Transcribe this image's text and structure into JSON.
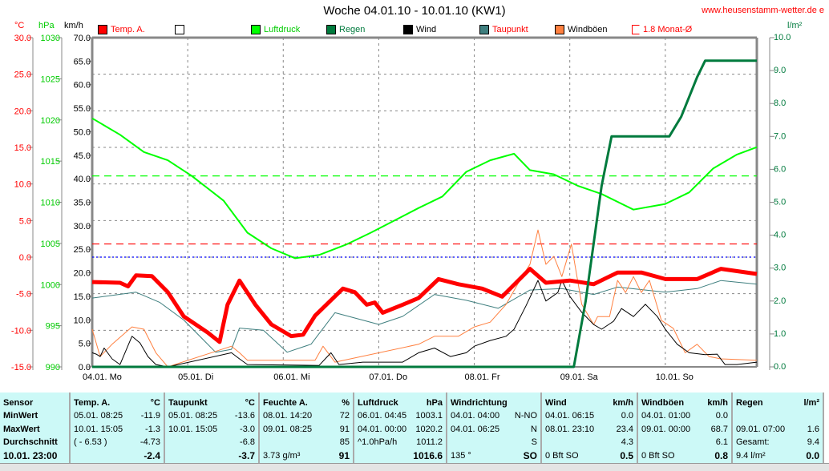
{
  "header": {
    "title": "Woche 04.01.10 - 10.01.10 (KW1)",
    "site": "www.heusenstamm-wetter.de e"
  },
  "axes_units": {
    "temp": "°C",
    "pressure": "hPa",
    "wind": "km/h",
    "rain": "l/m²"
  },
  "legend": [
    {
      "label": "Temp. A.",
      "color": "#ff0000",
      "text_color": "#ff0000"
    },
    {
      "label": "",
      "color": "#ffffff",
      "text_color": "#000000"
    },
    {
      "label": "Luftdruck",
      "color": "#00ff00",
      "text_color": "#00cc00"
    },
    {
      "label": "Regen",
      "color": "#007a3d",
      "text_color": "#007a3d"
    },
    {
      "label": "Wind",
      "color": "#000000",
      "text_color": "#000000"
    },
    {
      "label": "Taupunkt",
      "color": "#3f7f7f",
      "text_color": "#ff0000"
    },
    {
      "label": "Windböen",
      "color": "#ff8040",
      "text_color": "#000000"
    },
    {
      "label": "1.8 Monat-Ø",
      "color": "#ff0000",
      "text_color": "#ff0000"
    }
  ],
  "chart_data": {
    "type": "line",
    "title": "Woche 04.01.10 - 10.01.10 (KW1)",
    "x_unit": "hours since 04.01. 00:00",
    "xlim": [
      0,
      167
    ],
    "x_ticks": [
      "04.01. Mo",
      "05.01. Di",
      "06.01. Mi",
      "07.01. Do",
      "08.01. Fr",
      "09.01. Sa",
      "10.01. So"
    ],
    "axes": {
      "temp": {
        "range": [
          -15,
          30
        ],
        "ticks": [
          "30.0",
          "25.0",
          "20.0",
          "15.0",
          "10.0",
          "5.0",
          "0.0",
          "-5.0",
          "-10.0",
          "-15.0"
        ]
      },
      "pressure": {
        "range": [
          990,
          1030
        ],
        "ticks": [
          "1030",
          "1025",
          "1020",
          "1015",
          "1010",
          "1005",
          "1000",
          "995",
          "990"
        ]
      },
      "wind": {
        "range": [
          0,
          70
        ],
        "ticks": [
          "70.0",
          "65.0",
          "60.0",
          "55.0",
          "50.0",
          "45.0",
          "40.0",
          "35.0",
          "30.0",
          "25.0",
          "20.0",
          "15.0",
          "10.0",
          "5.0",
          "0.0"
        ]
      },
      "rain": {
        "range": [
          0,
          10
        ],
        "ticks": [
          "10.0",
          "9.0",
          "8.0",
          "7.0",
          "6.0",
          "5.0",
          "4.0",
          "3.0",
          "2.0",
          "1.0",
          "0.0"
        ]
      }
    },
    "grid": true,
    "reference_lines": [
      {
        "axis": "temp",
        "value": 1.8,
        "color": "#ff0000",
        "style": "dashed"
      },
      {
        "axis": "temp",
        "value": 0,
        "color": "#0000ff",
        "style": "dotted"
      },
      {
        "axis": "pressure",
        "value": 1013.2,
        "color": "#00ff00",
        "style": "dashed"
      }
    ],
    "series": [
      {
        "name": "Luftdruck",
        "axis": "pressure",
        "color": "#00ff00",
        "width": 2,
        "points": [
          [
            0,
            1020.2
          ],
          [
            7,
            1018.2
          ],
          [
            13,
            1016.1
          ],
          [
            19,
            1015.1
          ],
          [
            25,
            1013.2
          ],
          [
            33,
            1010.2
          ],
          [
            39,
            1006.3
          ],
          [
            45,
            1004.4
          ],
          [
            51,
            1003.2
          ],
          [
            57,
            1003.6
          ],
          [
            64,
            1004.9
          ],
          [
            70,
            1006.3
          ],
          [
            76,
            1007.8
          ],
          [
            82,
            1009.3
          ],
          [
            88,
            1010.7
          ],
          [
            94,
            1013.7
          ],
          [
            100,
            1015.1
          ],
          [
            106,
            1015.9
          ],
          [
            110,
            1013.9
          ],
          [
            116,
            1013.4
          ],
          [
            122,
            1012
          ],
          [
            128,
            1011
          ],
          [
            136,
            1009.1
          ],
          [
            144,
            1009.8
          ],
          [
            150,
            1011.2
          ],
          [
            156,
            1014.1
          ],
          [
            162,
            1015.8
          ],
          [
            167,
            1016.7
          ]
        ]
      },
      {
        "name": "Taupunkt",
        "axis": "temp",
        "color": "#3f7f7f",
        "width": 1,
        "points": [
          [
            0,
            -5.6
          ],
          [
            11,
            -4.8
          ],
          [
            17,
            -6.2
          ],
          [
            23,
            -8.6
          ],
          [
            31,
            -13
          ],
          [
            35,
            -12.6
          ],
          [
            37,
            -9.7
          ],
          [
            43,
            -10
          ],
          [
            49,
            -13
          ],
          [
            55,
            -11.9
          ],
          [
            61,
            -7.6
          ],
          [
            72,
            -9.2
          ],
          [
            78,
            -8.1
          ],
          [
            86,
            -5.1
          ],
          [
            94,
            -5.9
          ],
          [
            102,
            -7
          ],
          [
            110,
            -4.5
          ],
          [
            118,
            -4.3
          ],
          [
            126,
            -5.1
          ],
          [
            132,
            -4.1
          ],
          [
            144,
            -4.8
          ],
          [
            152,
            -4.3
          ],
          [
            158,
            -3.2
          ],
          [
            167,
            -3.7
          ]
        ]
      },
      {
        "name": "Windböen",
        "axis": "wind",
        "color": "#ff8040",
        "width": 1,
        "points": [
          [
            0,
            8
          ],
          [
            2,
            2.2
          ],
          [
            5,
            4.8
          ],
          [
            10,
            8.5
          ],
          [
            13,
            8
          ],
          [
            16,
            3
          ],
          [
            19,
            0
          ],
          [
            35,
            4.4
          ],
          [
            37,
            3
          ],
          [
            39,
            1.4
          ],
          [
            56,
            1.4
          ],
          [
            58,
            4.4
          ],
          [
            61,
            1
          ],
          [
            82,
            4.8
          ],
          [
            86,
            6.5
          ],
          [
            92,
            6.5
          ],
          [
            96,
            8.5
          ],
          [
            100,
            9.5
          ],
          [
            104,
            13.3
          ],
          [
            108,
            19.2
          ],
          [
            110,
            21.8
          ],
          [
            112,
            29.1
          ],
          [
            114,
            21.8
          ],
          [
            116,
            23.5
          ],
          [
            118,
            19.2
          ],
          [
            120.4,
            26.1
          ],
          [
            123,
            13.3
          ],
          [
            126,
            9
          ],
          [
            127,
            10.7
          ],
          [
            130,
            10.7
          ],
          [
            132,
            18.4
          ],
          [
            134,
            15.8
          ],
          [
            136,
            19.2
          ],
          [
            138,
            15.8
          ],
          [
            140,
            18.4
          ],
          [
            143,
            9.9
          ],
          [
            146,
            8.2
          ],
          [
            149,
            3
          ],
          [
            152,
            4.8
          ],
          [
            155,
            2.2
          ],
          [
            158,
            1.7
          ],
          [
            167,
            1.4
          ]
        ]
      },
      {
        "name": "Wind",
        "axis": "wind",
        "color": "#000000",
        "width": 1,
        "points": [
          [
            0,
            3
          ],
          [
            1,
            2.7
          ],
          [
            2,
            2.2
          ],
          [
            3,
            4
          ],
          [
            5,
            1.7
          ],
          [
            7,
            0.5
          ],
          [
            10,
            6.5
          ],
          [
            12,
            5.1
          ],
          [
            14,
            2.2
          ],
          [
            16,
            0.5
          ],
          [
            19,
            0
          ],
          [
            35,
            3
          ],
          [
            37,
            1.7
          ],
          [
            39,
            0.5
          ],
          [
            57,
            0.3
          ],
          [
            60,
            3
          ],
          [
            62,
            0.5
          ],
          [
            68,
            1
          ],
          [
            78,
            1
          ],
          [
            82,
            3
          ],
          [
            86,
            4
          ],
          [
            90,
            2.2
          ],
          [
            94,
            3
          ],
          [
            96,
            4.4
          ],
          [
            100,
            5.6
          ],
          [
            104,
            6.5
          ],
          [
            106,
            8
          ],
          [
            109,
            13
          ],
          [
            112,
            18.4
          ],
          [
            114,
            14
          ],
          [
            117,
            15.8
          ],
          [
            118,
            18.4
          ],
          [
            120,
            15
          ],
          [
            123,
            11.6
          ],
          [
            126,
            9
          ],
          [
            128,
            8
          ],
          [
            131,
            9.7
          ],
          [
            133,
            12.4
          ],
          [
            136,
            10.7
          ],
          [
            139,
            13.3
          ],
          [
            142,
            10.7
          ],
          [
            144,
            8
          ],
          [
            147,
            4.8
          ],
          [
            150,
            3
          ],
          [
            154,
            2.6
          ],
          [
            157,
            2.7
          ],
          [
            159,
            0.5
          ],
          [
            162,
            0.5
          ],
          [
            167,
            1
          ]
        ]
      },
      {
        "name": "Temp. A.",
        "axis": "temp",
        "color": "#ff0000",
        "width": 5,
        "points": [
          [
            0,
            -3.4
          ],
          [
            7,
            -3.5
          ],
          [
            9,
            -4.0
          ],
          [
            11,
            -2.5
          ],
          [
            15,
            -2.6
          ],
          [
            19,
            -4.8
          ],
          [
            23,
            -8.1
          ],
          [
            29,
            -10.3
          ],
          [
            32,
            -11.6
          ],
          [
            34,
            -6.5
          ],
          [
            37,
            -3.2
          ],
          [
            41,
            -6.5
          ],
          [
            45,
            -9.2
          ],
          [
            50,
            -10.8
          ],
          [
            53,
            -10.6
          ],
          [
            56,
            -8
          ],
          [
            63,
            -4.3
          ],
          [
            66,
            -4.8
          ],
          [
            69,
            -6.5
          ],
          [
            71,
            -6.2
          ],
          [
            73,
            -7.6
          ],
          [
            78,
            -6.5
          ],
          [
            82,
            -5.6
          ],
          [
            87,
            -3.0
          ],
          [
            92,
            -3.7
          ],
          [
            98,
            -4.3
          ],
          [
            103,
            -5.4
          ],
          [
            110,
            -1.6
          ],
          [
            114,
            -3.5
          ],
          [
            120,
            -3.2
          ],
          [
            126,
            -3.7
          ],
          [
            132,
            -2.1
          ],
          [
            138,
            -2.1
          ],
          [
            144,
            -3.0
          ],
          [
            152,
            -3.0
          ],
          [
            158,
            -1.6
          ],
          [
            167,
            -2.3
          ]
        ]
      },
      {
        "name": "Regen",
        "axis": "rain",
        "color": "#007a3d",
        "width": 3,
        "points": [
          [
            0,
            0
          ],
          [
            121,
            0
          ],
          [
            124,
            2
          ],
          [
            128,
            5.5
          ],
          [
            130.5,
            7
          ],
          [
            145,
            7
          ],
          [
            148,
            7.6
          ],
          [
            152,
            8.8
          ],
          [
            154,
            9.3
          ],
          [
            167,
            9.3
          ]
        ]
      }
    ]
  },
  "stats": {
    "columns": [
      {
        "title": "Sensor",
        "unit": "",
        "rows": [
          [
            "MinWert",
            "",
            ""
          ],
          [
            "MaxWert",
            "",
            ""
          ],
          [
            "Durchschnitt",
            "",
            ""
          ],
          [
            "10.01. 23:00",
            "",
            ""
          ]
        ]
      },
      {
        "title": "Temp. A.",
        "unit": "°C",
        "rows": [
          [
            "05.01.  08:25",
            "",
            "-11.9"
          ],
          [
            "10.01.  15:05",
            "",
            "-1.3"
          ],
          [
            "( - 6.53 )",
            "",
            "-4.73"
          ],
          [
            "",
            "",
            "-2.4"
          ]
        ]
      },
      {
        "title": "Taupunkt",
        "unit": "°C",
        "rows": [
          [
            "05.01.  08:25",
            "",
            "-13.6"
          ],
          [
            "10.01.  15:05",
            "",
            "-3.0"
          ],
          [
            "",
            "",
            "-6.8"
          ],
          [
            "",
            "",
            "-3.7"
          ]
        ]
      },
      {
        "title": "Feuchte A.",
        "unit": "%",
        "rows": [
          [
            "08.01.  14:20",
            "",
            "72"
          ],
          [
            "09.01.  08:25",
            "",
            "91"
          ],
          [
            "",
            "",
            "85"
          ],
          [
            "3.73 g/m³",
            "",
            "91"
          ]
        ]
      },
      {
        "title": "Luftdruck",
        "unit": "hPa",
        "rows": [
          [
            "06.01.  04:45",
            "",
            "1003.1"
          ],
          [
            "04.01.  00:00",
            "",
            "1020.2"
          ],
          [
            "^1.0hPa/h",
            "",
            "1011.2"
          ],
          [
            "",
            "",
            "1016.6"
          ]
        ]
      },
      {
        "title": "Windrichtung",
        "unit": "",
        "rows": [
          [
            "04.01.  04:00",
            "",
            "N-NO"
          ],
          [
            "04.01.  06:25",
            "",
            "N"
          ],
          [
            "",
            "",
            "S"
          ],
          [
            "135 °",
            "",
            "SO"
          ]
        ]
      },
      {
        "title": "Wind",
        "unit": "km/h",
        "rows": [
          [
            "04.01.  06:15",
            "",
            "0.0"
          ],
          [
            "08.01.  23:10",
            "",
            "23.4"
          ],
          [
            "",
            "",
            "4.3"
          ],
          [
            "0 Bft SO",
            "",
            "0.5"
          ]
        ]
      },
      {
        "title": "Windböen",
        "unit": "km/h",
        "rows": [
          [
            "04.01.  01:00",
            "",
            "0.0"
          ],
          [
            "09.01.  00:00",
            "",
            "68.7"
          ],
          [
            "",
            "",
            "6.1"
          ],
          [
            "0 Bft SO",
            "",
            "0.8"
          ]
        ]
      },
      {
        "title": "Regen",
        "unit": "l/m²",
        "rows": [
          [
            "",
            "",
            ""
          ],
          [
            "09.01.  07:00",
            "",
            "1.6"
          ],
          [
            "Gesamt:",
            "",
            "9.4"
          ],
          [
            "9.4 l/m²",
            "",
            "0.0"
          ]
        ]
      }
    ]
  }
}
